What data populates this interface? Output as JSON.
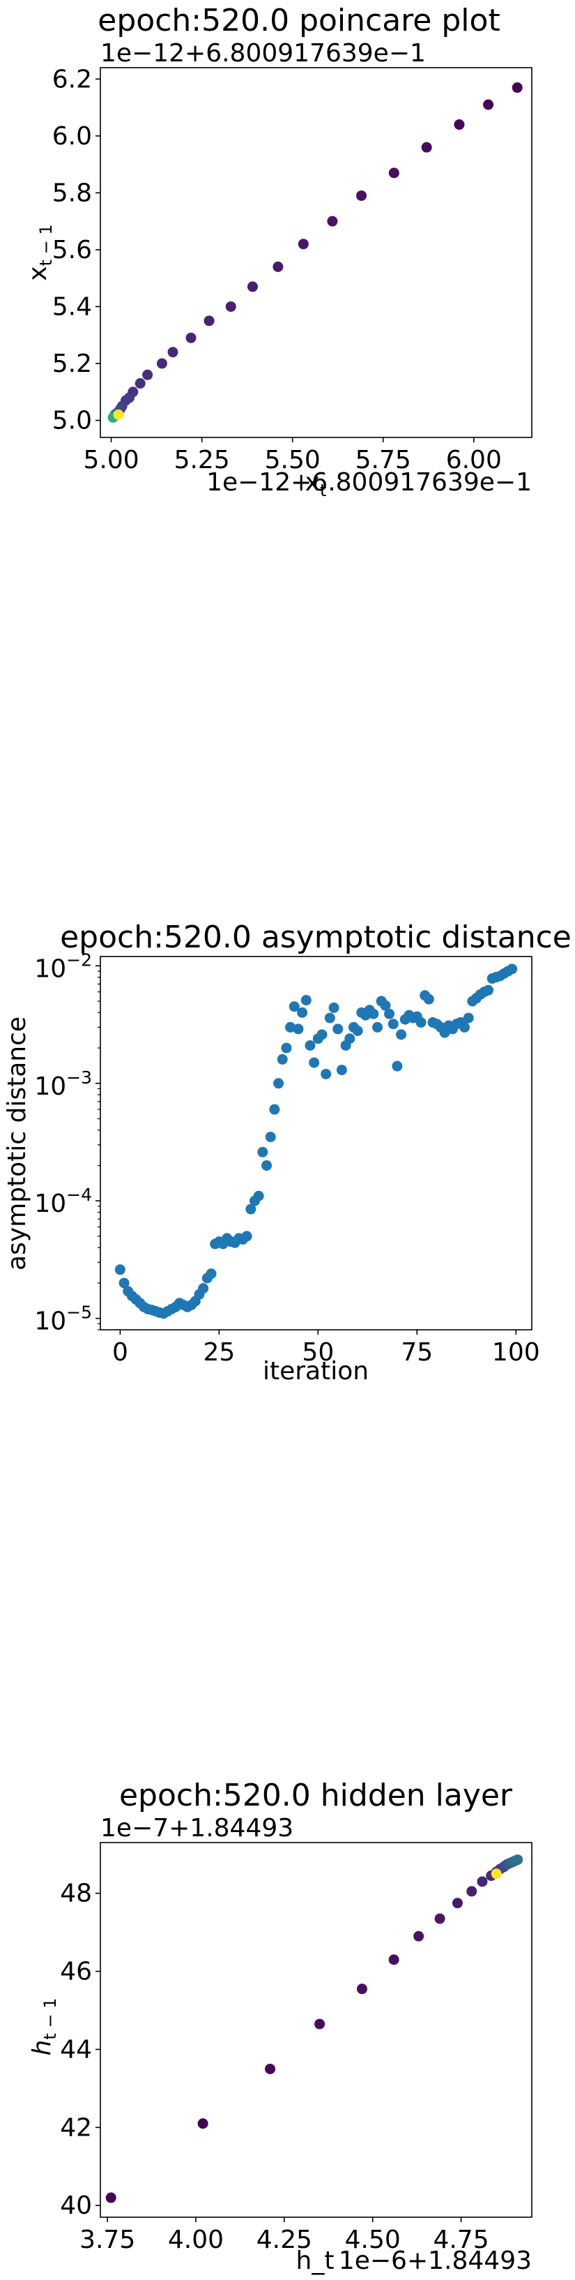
{
  "chart_data": [
    {
      "type": "scatter",
      "title": "epoch:520.0 poincare plot",
      "xlabel": "x_t",
      "ylabel": "x_{t-1}",
      "x_offset_text": "1e−12+6.800917639e−1",
      "y_offset_text": "1e−12+6.800917639e−1",
      "xlim": [
        4.97,
        6.16
      ],
      "ylim": [
        4.94,
        6.24
      ],
      "x_scale": "linear",
      "y_scale": "linear",
      "xticks": [
        5.0,
        5.25,
        5.5,
        5.75,
        6.0
      ],
      "xtick_labels": [
        "5.00",
        "5.25",
        "5.50",
        "5.75",
        "6.00"
      ],
      "yticks": [
        5.0,
        5.2,
        5.4,
        5.6,
        5.8,
        6.0,
        6.2
      ],
      "ytick_labels": [
        "5.0",
        "5.2",
        "5.4",
        "5.6",
        "5.8",
        "6.0",
        "6.2"
      ],
      "grid": false,
      "marker_size": 7.5,
      "points": [
        {
          "x": 6.12,
          "y": 6.17,
          "color": "#440154"
        },
        {
          "x": 6.04,
          "y": 6.11,
          "color": "#440154"
        },
        {
          "x": 5.96,
          "y": 6.04,
          "color": "#45085b"
        },
        {
          "x": 5.87,
          "y": 5.96,
          "color": "#460b5e"
        },
        {
          "x": 5.78,
          "y": 5.87,
          "color": "#470e61"
        },
        {
          "x": 5.69,
          "y": 5.79,
          "color": "#471164"
        },
        {
          "x": 5.61,
          "y": 5.7,
          "color": "#481467"
        },
        {
          "x": 5.53,
          "y": 5.62,
          "color": "#481769"
        },
        {
          "x": 5.46,
          "y": 5.54,
          "color": "#481a6c"
        },
        {
          "x": 5.39,
          "y": 5.47,
          "color": "#481d6f"
        },
        {
          "x": 5.33,
          "y": 5.4,
          "color": "#482071"
        },
        {
          "x": 5.27,
          "y": 5.35,
          "color": "#482374"
        },
        {
          "x": 5.22,
          "y": 5.29,
          "color": "#472676"
        },
        {
          "x": 5.17,
          "y": 5.24,
          "color": "#472878"
        },
        {
          "x": 5.14,
          "y": 5.2,
          "color": "#472b7a"
        },
        {
          "x": 5.1,
          "y": 5.16,
          "color": "#462e7c"
        },
        {
          "x": 5.08,
          "y": 5.13,
          "color": "#46307e"
        },
        {
          "x": 5.06,
          "y": 5.1,
          "color": "#453480"
        },
        {
          "x": 5.05,
          "y": 5.08,
          "color": "#443983"
        },
        {
          "x": 5.04,
          "y": 5.07,
          "color": "#433d84"
        },
        {
          "x": 5.03,
          "y": 5.05,
          "color": "#424086"
        },
        {
          "x": 5.025,
          "y": 5.04,
          "color": "#404588"
        },
        {
          "x": 5.02,
          "y": 5.03,
          "color": "#3e4989"
        },
        {
          "x": 5.015,
          "y": 5.025,
          "color": "#3b528b"
        },
        {
          "x": 5.01,
          "y": 5.02,
          "color": "#33638d"
        },
        {
          "x": 5.008,
          "y": 5.015,
          "color": "#2c728e"
        },
        {
          "x": 5.006,
          "y": 5.012,
          "color": "#21918c"
        },
        {
          "x": 5.005,
          "y": 5.01,
          "color": "#28ae80"
        },
        {
          "x": 5.02,
          "y": 5.02,
          "color": "#fde725"
        }
      ]
    },
    {
      "type": "scatter",
      "title": "epoch:520.0 asymptotic distance",
      "xlabel": "iteration",
      "ylabel": "asymptotic distance",
      "xlim": [
        -5,
        104
      ],
      "ylim": [
        8e-06,
        0.012
      ],
      "x_scale": "linear",
      "y_scale": "log",
      "xticks": [
        0,
        25,
        50,
        75,
        100
      ],
      "xtick_labels": [
        "0",
        "25",
        "50",
        "75",
        "100"
      ],
      "yticks": [
        1e-05,
        0.0001,
        0.001,
        0.01
      ],
      "ytick_labels": [
        "10",
        "10",
        "10",
        "10"
      ],
      "ytick_exponents": [
        "−5",
        "−4",
        "−3",
        "−2"
      ],
      "grid": false,
      "color": "#1f77b4",
      "marker_size": 7.5,
      "x": [
        0,
        1,
        2,
        3,
        4,
        5,
        6,
        7,
        8,
        9,
        10,
        11,
        12,
        13,
        14,
        15,
        16,
        17,
        18,
        19,
        20,
        21,
        22,
        23,
        24,
        25,
        26,
        27,
        28,
        29,
        30,
        31,
        32,
        33,
        34,
        35,
        36,
        37,
        38,
        39,
        40,
        41,
        42,
        43,
        44,
        45,
        46,
        47,
        48,
        49,
        50,
        51,
        52,
        53,
        54,
        55,
        56,
        57,
        58,
        59,
        60,
        61,
        62,
        63,
        64,
        65,
        66,
        67,
        68,
        69,
        70,
        71,
        72,
        73,
        74,
        75,
        76,
        77,
        78,
        79,
        80,
        81,
        82,
        83,
        84,
        85,
        86,
        87,
        88,
        89,
        90,
        91,
        92,
        93,
        94,
        95,
        96,
        97,
        98,
        99
      ],
      "y": [
        2.6e-05,
        2e-05,
        1.7e-05,
        1.55e-05,
        1.45e-05,
        1.35e-05,
        1.25e-05,
        1.2e-05,
        1.18e-05,
        1.15e-05,
        1.12e-05,
        1.1e-05,
        1.15e-05,
        1.2e-05,
        1.25e-05,
        1.35e-05,
        1.3e-05,
        1.25e-05,
        1.3e-05,
        1.4e-05,
        1.6e-05,
        1.8e-05,
        2.2e-05,
        2.4e-05,
        4.3e-05,
        4.5e-05,
        4.3e-05,
        4.8e-05,
        4.5e-05,
        4.4e-05,
        4.8e-05,
        4.7e-05,
        5e-05,
        8.5e-05,
        0.0001,
        0.00011,
        0.00026,
        0.0002,
        0.00035,
        0.0006,
        0.001,
        0.0016,
        0.002,
        0.003,
        0.0045,
        0.0029,
        0.004,
        0.0051,
        0.0021,
        0.0015,
        0.0024,
        0.0026,
        0.0012,
        0.0036,
        0.0044,
        0.0029,
        0.0013,
        0.0021,
        0.0024,
        0.003,
        0.0028,
        0.004,
        0.0038,
        0.0042,
        0.0039,
        0.003,
        0.005,
        0.0046,
        0.0039,
        0.0032,
        0.0014,
        0.0026,
        0.0035,
        0.0038,
        0.0036,
        0.0037,
        0.0033,
        0.0056,
        0.0052,
        0.0033,
        0.0032,
        0.003,
        0.0027,
        0.0031,
        0.0029,
        0.0032,
        0.0033,
        0.003,
        0.0036,
        0.005,
        0.0053,
        0.0057,
        0.006,
        0.0062,
        0.0078,
        0.008,
        0.0082,
        0.0086,
        0.009,
        0.0094
      ]
    },
    {
      "type": "scatter",
      "title": "epoch:520.0 hidden layer",
      "xlabel": "h_t",
      "ylabel": "h_{t-1}",
      "x_offset_text": "1e−6+1.84493",
      "y_offset_text": "1e−7+1.84493",
      "xlim": [
        3.73,
        4.95
      ],
      "ylim": [
        39.7,
        49.3
      ],
      "x_scale": "linear",
      "y_scale": "linear",
      "xticks": [
        3.75,
        4.0,
        4.25,
        4.5,
        4.75
      ],
      "xtick_labels": [
        "3.75",
        "4.00",
        "4.25",
        "4.50",
        "4.75"
      ],
      "yticks": [
        40,
        42,
        44,
        46,
        48
      ],
      "ytick_labels": [
        "40",
        "42",
        "44",
        "46",
        "48"
      ],
      "grid": false,
      "marker_size": 7.5,
      "points": [
        {
          "x": 3.76,
          "y": 40.2,
          "color": "#440154"
        },
        {
          "x": 4.02,
          "y": 42.1,
          "color": "#440154"
        },
        {
          "x": 4.21,
          "y": 43.5,
          "color": "#45085b"
        },
        {
          "x": 4.35,
          "y": 44.65,
          "color": "#460b5e"
        },
        {
          "x": 4.47,
          "y": 45.55,
          "color": "#470e61"
        },
        {
          "x": 4.56,
          "y": 46.3,
          "color": "#471164"
        },
        {
          "x": 4.63,
          "y": 46.9,
          "color": "#481467"
        },
        {
          "x": 4.69,
          "y": 47.35,
          "color": "#481769"
        },
        {
          "x": 4.74,
          "y": 47.75,
          "color": "#481a6c"
        },
        {
          "x": 4.78,
          "y": 48.05,
          "color": "#482071"
        },
        {
          "x": 4.81,
          "y": 48.3,
          "color": "#472676"
        },
        {
          "x": 4.835,
          "y": 48.45,
          "color": "#462e7c"
        },
        {
          "x": 4.85,
          "y": 48.55,
          "color": "#453480"
        },
        {
          "x": 4.86,
          "y": 48.62,
          "color": "#433d84"
        },
        {
          "x": 4.87,
          "y": 48.67,
          "color": "#414487"
        },
        {
          "x": 4.875,
          "y": 48.71,
          "color": "#3e4989"
        },
        {
          "x": 4.88,
          "y": 48.74,
          "color": "#3b528b"
        },
        {
          "x": 4.885,
          "y": 48.76,
          "color": "#38598c"
        },
        {
          "x": 4.89,
          "y": 48.78,
          "color": "#355f8d"
        },
        {
          "x": 4.895,
          "y": 48.8,
          "color": "#33638d"
        },
        {
          "x": 4.9,
          "y": 48.82,
          "color": "#31688e"
        },
        {
          "x": 4.905,
          "y": 48.84,
          "color": "#2e6e8e"
        },
        {
          "x": 4.91,
          "y": 48.86,
          "color": "#2c728e"
        },
        {
          "x": 4.85,
          "y": 48.5,
          "color": "#fde725"
        }
      ]
    }
  ]
}
